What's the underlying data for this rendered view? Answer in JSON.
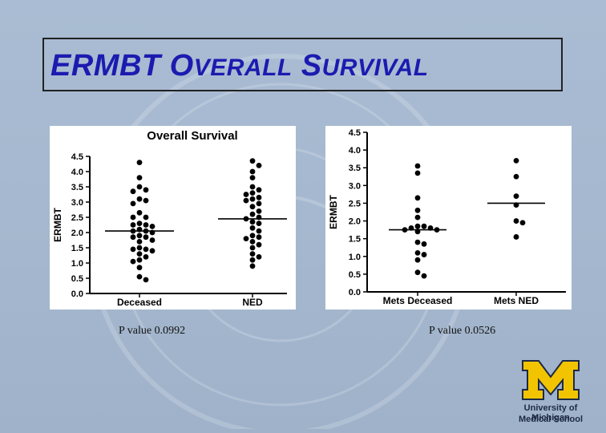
{
  "slide": {
    "title_parts": [
      "ERMBT O",
      "VERALL",
      " S",
      "URVIVAL"
    ],
    "colors": {
      "title": "#1b1bb0",
      "background": "#a9bcd3",
      "logo_m": "#f2c400",
      "logo_text": "#1e2a44"
    },
    "pvalue_left": "P value 0.0992",
    "pvalue_right": "P value 0.0526",
    "logo": {
      "line1": "University of Michigan",
      "line2": "Medical School"
    }
  },
  "chart_data": [
    {
      "type": "scatter",
      "title": "Overall  Survival",
      "xlabel": "",
      "ylabel": "ERMBT",
      "ylim": [
        0,
        4.5
      ],
      "yticks": [
        0.0,
        0.5,
        1.0,
        1.5,
        2.0,
        2.5,
        3.0,
        3.5,
        4.0,
        4.5
      ],
      "categories": [
        "Deceased",
        "NED"
      ],
      "means": [
        2.05,
        2.45
      ],
      "series": [
        {
          "name": "Deceased",
          "values": [
            4.3,
            3.8,
            3.5,
            3.4,
            3.35,
            3.1,
            3.05,
            2.95,
            2.65,
            2.5,
            2.5,
            2.3,
            2.25,
            2.25,
            2.2,
            2.1,
            2.05,
            2.05,
            2.0,
            1.9,
            1.85,
            1.85,
            1.75,
            1.7,
            1.5,
            1.45,
            1.45,
            1.4,
            1.3,
            1.2,
            1.1,
            1.05,
            0.85,
            0.55,
            0.45
          ]
        },
        {
          "name": "NED",
          "values": [
            4.35,
            4.2,
            4.0,
            3.8,
            3.5,
            3.4,
            3.3,
            3.25,
            3.15,
            3.1,
            3.05,
            2.95,
            2.85,
            2.7,
            2.6,
            2.5,
            2.45,
            2.35,
            2.3,
            2.15,
            2.05,
            1.9,
            1.85,
            1.8,
            1.7,
            1.6,
            1.5,
            1.3,
            1.2,
            1.1,
            0.9
          ]
        }
      ]
    },
    {
      "type": "scatter",
      "title": "",
      "xlabel": "",
      "ylabel": "ERMBT",
      "ylim": [
        0,
        4.5
      ],
      "yticks": [
        0.0,
        0.5,
        1.0,
        1.5,
        2.0,
        2.5,
        3.0,
        3.5,
        4.0,
        4.5
      ],
      "categories": [
        "Mets Deceased",
        "Mets NED"
      ],
      "means": [
        1.75,
        2.5
      ],
      "series": [
        {
          "name": "Mets Deceased",
          "values": [
            3.55,
            3.35,
            2.65,
            2.3,
            2.1,
            1.85,
            1.85,
            1.8,
            1.8,
            1.75,
            1.75,
            1.7,
            1.4,
            1.35,
            1.1,
            1.05,
            0.9,
            0.55,
            0.45
          ]
        },
        {
          "name": "Mets NED",
          "values": [
            3.7,
            3.25,
            2.7,
            2.45,
            2.0,
            1.95,
            1.55
          ]
        }
      ]
    }
  ]
}
